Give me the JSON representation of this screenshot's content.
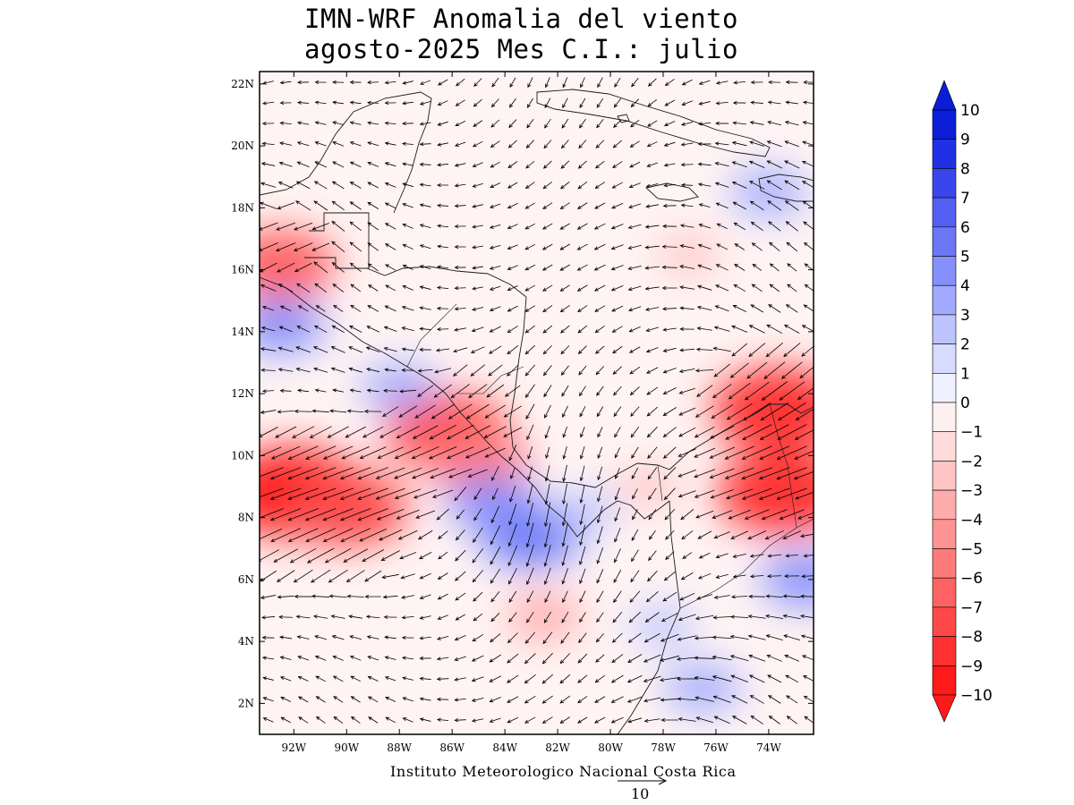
{
  "title": {
    "line1": "IMN-WRF Anomalia del viento",
    "line2": "agosto-2025 Mes C.I.: julio"
  },
  "credit": "Instituto Meteorologico Nacional Costa Rica",
  "reference_vector": {
    "label": "10"
  },
  "colors": {
    "positive": [
      "#eef0ff",
      "#d6dbff",
      "#bcc3ff",
      "#a1aafe",
      "#8590fc",
      "#6b77f7",
      "#525ff2",
      "#3a46eb",
      "#2030e6",
      "#0a1ed8"
    ],
    "negative": [
      "#fff0f0",
      "#ffdcdc",
      "#ffc4c4",
      "#ffacac",
      "#ff9393",
      "#ff7b7b",
      "#ff6262",
      "#ff4949",
      "#ff3030",
      "#ff1a1a"
    ]
  },
  "chart_data": {
    "type": "map",
    "title": "IMN-WRF Anomalia del viento agosto-2025 Mes C.I.: julio",
    "lon_range": [
      -93.3,
      -72.3
    ],
    "lat_range": [
      1.0,
      22.4
    ],
    "lat_ticks": [
      "22N",
      "20N",
      "18N",
      "16N",
      "14N",
      "12N",
      "10N",
      "8N",
      "6N",
      "4N",
      "2N"
    ],
    "lat_values": [
      22,
      20,
      18,
      16,
      14,
      12,
      10,
      8,
      6,
      4,
      2
    ],
    "lon_ticks": [
      "92W",
      "90W",
      "88W",
      "86W",
      "84W",
      "82W",
      "80W",
      "78W",
      "76W",
      "74W"
    ],
    "lon_values": [
      -92,
      -90,
      -88,
      -86,
      -84,
      -82,
      -80,
      -78,
      -76,
      -74
    ],
    "colorbar": {
      "labels": [
        "10",
        "9",
        "8",
        "7",
        "6",
        "5",
        "4",
        "3",
        "2",
        "1",
        "0",
        "−1",
        "−2",
        "−3",
        "−4",
        "−5",
        "−6",
        "−7",
        "−8",
        "−9",
        "−10"
      ],
      "min": -10,
      "max": 10
    },
    "anomaly_features": [
      {
        "lon": -92.0,
        "lat": 8.8,
        "value": -9
      },
      {
        "lon": -90.0,
        "lat": 8.3,
        "value": -7
      },
      {
        "lon": -86.2,
        "lat": 10.8,
        "value": -7
      },
      {
        "lon": -85.0,
        "lat": 9.8,
        "value": -5
      },
      {
        "lon": -92.5,
        "lat": 16.2,
        "value": -6
      },
      {
        "lon": -73.6,
        "lat": 11.5,
        "value": -8
      },
      {
        "lon": -73.4,
        "lat": 8.8,
        "value": -8
      },
      {
        "lon": -82.5,
        "lat": 4.8,
        "value": -3
      },
      {
        "lon": -78.5,
        "lat": 9.0,
        "value": -2
      },
      {
        "lon": -77.0,
        "lat": 16.5,
        "value": -2
      },
      {
        "lon": -83.0,
        "lat": 7.4,
        "value": 5
      },
      {
        "lon": -84.5,
        "lat": 8.5,
        "value": 4
      },
      {
        "lon": -92.5,
        "lat": 14.2,
        "value": 4
      },
      {
        "lon": -88.0,
        "lat": 12.2,
        "value": 3
      },
      {
        "lon": -76.5,
        "lat": 2.5,
        "value": 3
      },
      {
        "lon": -72.6,
        "lat": 6.0,
        "value": 4
      },
      {
        "lon": -74.0,
        "lat": 18.5,
        "value": 3
      },
      {
        "lon": -81.0,
        "lat": 8.2,
        "value": 2
      },
      {
        "lon": -78.0,
        "lat": 4.5,
        "value": 2
      }
    ]
  }
}
